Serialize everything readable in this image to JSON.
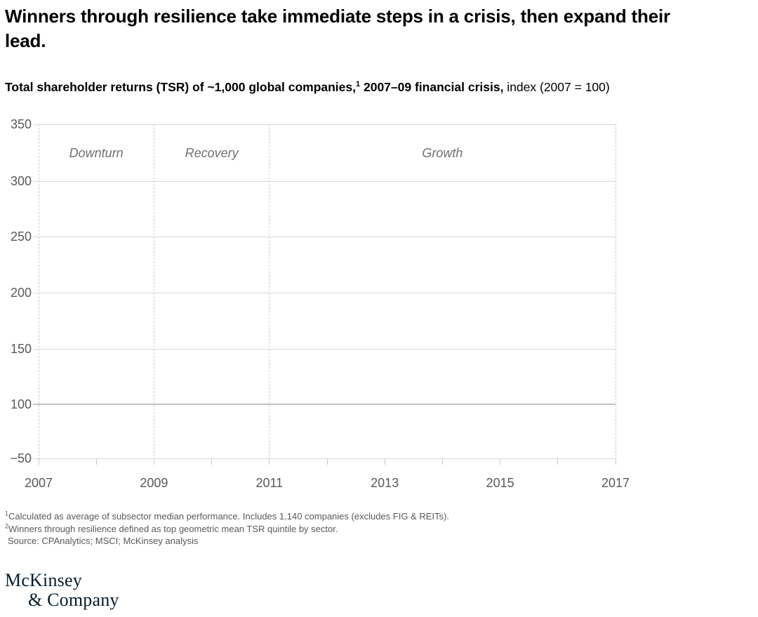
{
  "header": {
    "title": "Winners through resilience take immediate steps in a crisis, then expand their lead.",
    "title_lines": [
      "Winners through resilience take immediate steps in a crisis, then expand their",
      "lead."
    ],
    "subtitle": {
      "bold_1": "Total shareholder returns (TSR) of ~1,000 global companies,",
      "sup": "1",
      "bold_2": " 2007–09 financial crisis,",
      "regular": " index (2007 = 100)"
    }
  },
  "chart_data": {
    "type": "line",
    "title": "Total shareholder returns (TSR) of ~1,000 global companies, 2007–09 financial crisis, index (2007 = 100)",
    "x_range": [
      2007,
      2017
    ],
    "x_tick_years": [
      2007,
      2009,
      2011,
      2013,
      2015,
      2017
    ],
    "x_tick_labels": [
      "2007",
      "2009",
      "2011",
      "2013",
      "2015",
      "2017"
    ],
    "x_minor_tick_years": [
      2007,
      2008,
      2009,
      2010,
      2011,
      2012,
      2013,
      2014,
      2015,
      2016,
      2017
    ],
    "y_tick_labels": [
      "350",
      "300",
      "250",
      "200",
      "150",
      "100",
      "−50"
    ],
    "y_tick_values": [
      350,
      300,
      250,
      200,
      150,
      100,
      -50
    ],
    "baseline_value": 100,
    "grid": true,
    "legend": "none",
    "series": [],
    "phases": [
      {
        "label": "Downturn",
        "start": 2007,
        "end": 2009
      },
      {
        "label": "Recovery",
        "start": 2009,
        "end": 2011
      },
      {
        "label": "Growth",
        "start": 2011,
        "end": 2017
      }
    ],
    "phase_boundary_years": [
      2007,
      2009,
      2011,
      2017
    ]
  },
  "footnotes": [
    {
      "sup": "1",
      "text": "Calculated as average of subsector median performance. Includes 1,140 companies (excludes FIG & REITs)."
    },
    {
      "sup": "2",
      "text": "Winners through resilience defined as top geometric mean TSR quintile by sector."
    },
    {
      "sup": "",
      "text": "Source: CPAnalytics; MSCI; McKinsey analysis"
    }
  ],
  "logo": {
    "line1": "McKinsey",
    "line2": "& Company"
  },
  "colors": {
    "title": "#000000",
    "axis_text": "#595959",
    "grid": "#d9d9d9",
    "baseline_grid": "#c2c2c2",
    "dashed_divider": "#cccccc",
    "phase_text": "#707070",
    "footnote_text": "#595959",
    "logo_navy": "#051c2c",
    "background": "#ffffff"
  }
}
